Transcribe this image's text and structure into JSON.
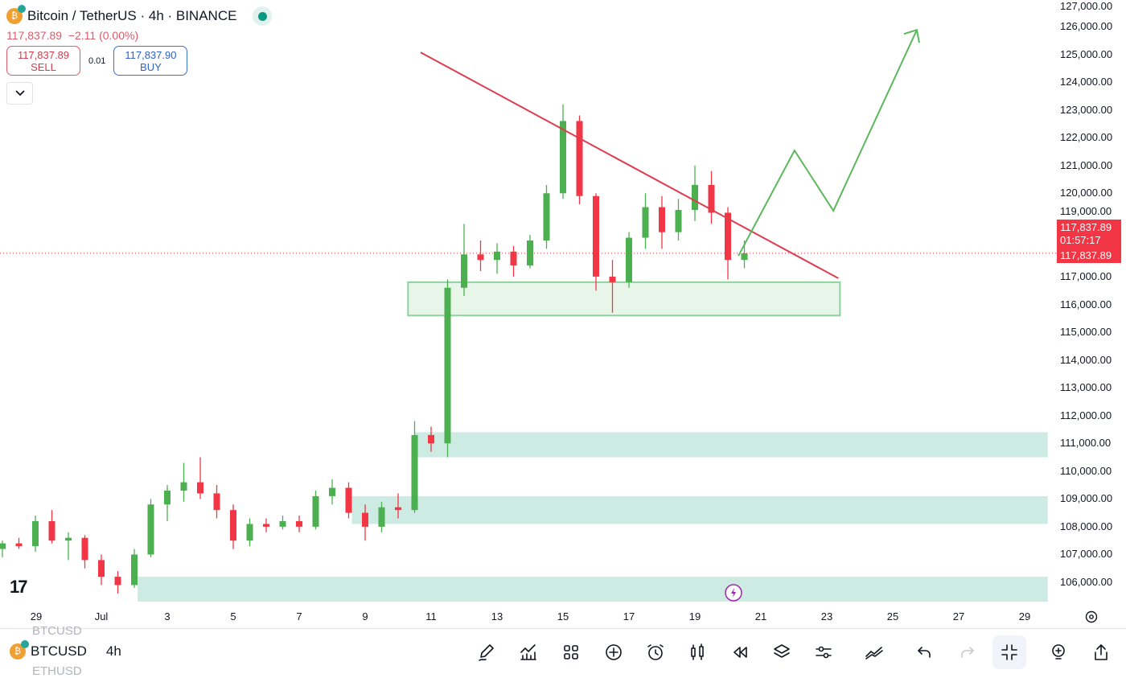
{
  "header": {
    "title": "Bitcoin / TetherUS · 4h · BINANCE",
    "last": "117,837.89",
    "change": "−2.11 (0.00%)",
    "sell_price": "117,837.89",
    "sell_label": "SELL",
    "spread": "0.01",
    "buy_price": "117,837.90",
    "buy_label": "BUY",
    "market_status": "open"
  },
  "price_axis": {
    "labels": [
      "127,000.00",
      "126,000.00",
      "125,000.00",
      "124,000.00",
      "123,000.00",
      "122,000.00",
      "121,000.00",
      "120,000.00",
      "119,000.00",
      "117,000.00",
      "116,000.00",
      "115,000.00",
      "114,000.00",
      "113,000.00",
      "112,000.00",
      "111,000.00",
      "110,000.00",
      "109,000.00",
      "108,000.00",
      "107,000.00",
      "106,000.00"
    ],
    "current_price": "117,837.89",
    "countdown": "01:57:17",
    "current_price_repeat": "117,837.89"
  },
  "time_axis": {
    "labels": [
      "29",
      "Jul",
      "3",
      "5",
      "7",
      "9",
      "11",
      "13",
      "15",
      "17",
      "19",
      "21",
      "23",
      "25",
      "27",
      "29"
    ]
  },
  "colors": {
    "up": "#4caf50",
    "down": "#f23645",
    "trendline": "#e03c50",
    "arrow": "#5cb85c",
    "zone": "#cdeae3",
    "box": "#e8f5e9"
  },
  "chart_data": {
    "type": "candlestick",
    "interval": "4h",
    "x_unit": "days since Jul 1",
    "y_unit": "thousand USDT",
    "candles": [
      [
        -3,
        107.2,
        107.5,
        106.9,
        107.4
      ],
      [
        -2.5,
        107.4,
        107.6,
        107.2,
        107.3
      ],
      [
        -2,
        107.3,
        108.4,
        107.1,
        108.2
      ],
      [
        -1.5,
        108.2,
        108.6,
        107.4,
        107.5
      ],
      [
        -1,
        107.5,
        107.8,
        106.8,
        107.6
      ],
      [
        -0.5,
        107.6,
        107.7,
        106.5,
        106.8
      ],
      [
        0,
        106.8,
        107.0,
        105.9,
        106.2
      ],
      [
        0.5,
        106.2,
        106.4,
        105.6,
        105.9
      ],
      [
        1,
        105.9,
        107.2,
        105.8,
        107.0
      ],
      [
        1.5,
        107.0,
        109.0,
        106.9,
        108.8
      ],
      [
        2,
        108.8,
        109.5,
        108.2,
        109.3
      ],
      [
        2.5,
        109.3,
        110.3,
        108.9,
        109.6
      ],
      [
        3,
        109.6,
        110.5,
        109.0,
        109.2
      ],
      [
        3.5,
        109.2,
        109.5,
        108.3,
        108.6
      ],
      [
        4,
        108.6,
        108.8,
        107.2,
        107.5
      ],
      [
        4.5,
        107.5,
        108.3,
        107.3,
        108.1
      ],
      [
        5,
        108.1,
        108.3,
        107.8,
        108.0
      ],
      [
        5.5,
        108.0,
        108.4,
        107.9,
        108.2
      ],
      [
        6,
        108.2,
        108.4,
        107.8,
        108.0
      ],
      [
        6.5,
        108.0,
        109.3,
        107.9,
        109.1
      ],
      [
        7,
        109.1,
        109.7,
        108.8,
        109.4
      ],
      [
        7.5,
        109.4,
        109.6,
        108.3,
        108.5
      ],
      [
        8,
        108.5,
        108.8,
        107.5,
        108.0
      ],
      [
        8.5,
        108.0,
        108.9,
        107.8,
        108.7
      ],
      [
        9,
        108.7,
        109.2,
        108.3,
        108.6
      ],
      [
        9.5,
        108.6,
        111.8,
        108.5,
        111.3
      ],
      [
        10,
        111.3,
        111.6,
        110.7,
        111.0
      ],
      [
        10.5,
        111.0,
        116.9,
        110.5,
        116.6
      ],
      [
        11,
        116.6,
        118.9,
        116.3,
        117.8
      ],
      [
        11.5,
        117.8,
        118.3,
        117.2,
        117.6
      ],
      [
        12,
        117.6,
        118.2,
        117.1,
        117.9
      ],
      [
        12.5,
        117.9,
        118.1,
        117.0,
        117.4
      ],
      [
        13,
        117.4,
        118.5,
        117.3,
        118.3
      ],
      [
        13.5,
        118.3,
        120.3,
        118.0,
        120.0
      ],
      [
        14,
        120.0,
        123.2,
        119.8,
        122.6
      ],
      [
        14.5,
        122.6,
        122.8,
        119.6,
        119.9
      ],
      [
        15,
        119.9,
        120.0,
        116.5,
        117.0
      ],
      [
        15.5,
        117.0,
        117.6,
        115.7,
        116.8
      ],
      [
        16,
        116.8,
        118.6,
        116.6,
        118.4
      ],
      [
        16.5,
        118.4,
        120.0,
        118.0,
        119.5
      ],
      [
        17,
        119.5,
        119.9,
        118.0,
        118.6
      ],
      [
        17.5,
        118.6,
        119.8,
        118.3,
        119.4
      ],
      [
        18,
        119.4,
        121.0,
        119.0,
        120.3
      ],
      [
        18.5,
        120.3,
        120.8,
        118.9,
        119.3
      ],
      [
        19,
        119.3,
        119.5,
        116.9,
        117.6
      ],
      [
        19.5,
        117.6,
        118.3,
        117.3,
        117.84
      ]
    ],
    "zones": [
      {
        "from": 9.3,
        "to": 22.4,
        "low": 115.6,
        "high": 116.8,
        "style": "box"
      },
      {
        "from": 9.5,
        "to": 28.7,
        "low": 110.5,
        "high": 111.4,
        "style": "zone"
      },
      {
        "from": 7.6,
        "to": 28.7,
        "low": 108.1,
        "high": 109.1,
        "style": "zone"
      },
      {
        "from": 1.1,
        "to": 28.7,
        "low": 105.3,
        "high": 106.2,
        "style": "zone"
      }
    ],
    "trendline": [
      [
        9.68,
        125.07
      ],
      [
        22.35,
        116.94
      ]
    ],
    "projection": [
      [
        19.32,
        117.75
      ],
      [
        21.02,
        121.54
      ],
      [
        22.2,
        119.37
      ],
      [
        24.73,
        125.88
      ]
    ],
    "current_price": 117.84
  },
  "bottom": {
    "symbol": "BTCUSD",
    "interval": "4h",
    "ghost_above": "BTCUSD",
    "ghost_below": "ETHUSD"
  }
}
